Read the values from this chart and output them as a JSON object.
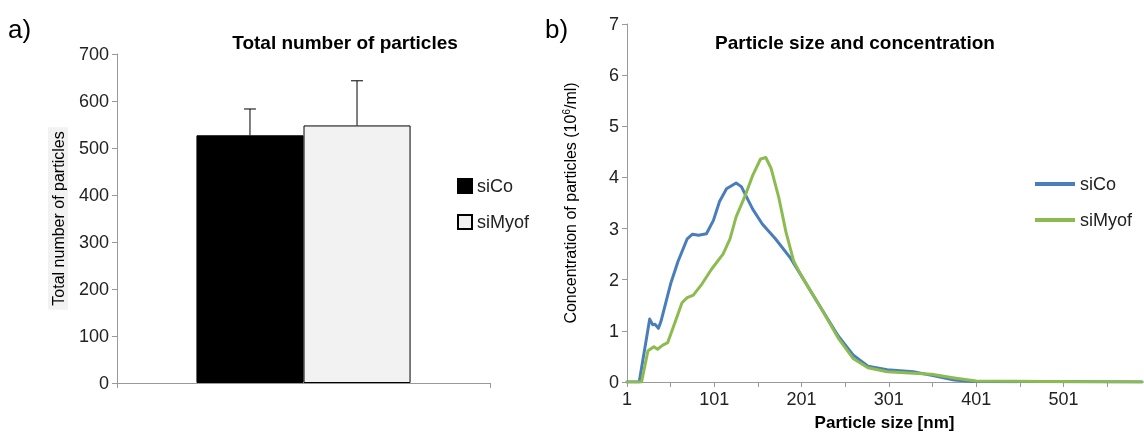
{
  "chart_data": [
    {
      "type": "bar",
      "title": "Total number of particles",
      "ylabel": "Total number of particles",
      "annotations": [
        "a)"
      ],
      "categories": [
        null
      ],
      "ylim": [
        0,
        700
      ],
      "yticks": [
        0,
        100,
        200,
        300,
        400,
        500,
        600,
        700
      ],
      "grid": false,
      "legend": "right",
      "series": [
        {
          "name": "siCo",
          "color": "#000000",
          "values": [
            527
          ],
          "errors": [
            [
              527,
              583
            ]
          ]
        },
        {
          "name": "siMyof",
          "color": "#f2f2f2",
          "values": [
            548
          ],
          "errors": [
            [
              548,
              643
            ]
          ]
        }
      ]
    },
    {
      "type": "line",
      "title": "Particle size and concentration",
      "xlabel": "Particle size [nm]",
      "ylabel": "Concentration of particles (10$^{6}$/ml)",
      "annotations": [
        "b)"
      ],
      "xlim": [
        1,
        591
      ],
      "xticks": [
        1,
        {
          "value": 51,
          "label": null
        },
        101,
        {
          "value": 151,
          "label": null
        },
        201,
        {
          "value": 251,
          "label": null
        },
        301,
        {
          "value": 351,
          "label": null
        },
        401,
        {
          "value": 451,
          "label": null
        },
        501,
        {
          "value": 551,
          "label": null
        }
      ],
      "ylim": [
        0,
        7
      ],
      "yticks": [
        0,
        1,
        2,
        3,
        4,
        5,
        6,
        7
      ],
      "grid": false,
      "legend": "right",
      "marker": "none",
      "line_style": "solid",
      "series": [
        {
          "name": "siCo",
          "color": "#4a7ebb",
          "x": [
            1,
            15,
            27,
            30.5,
            33,
            37,
            40,
            51,
            59.5,
            70,
            76,
            83,
            92,
            100,
            107,
            115,
            126,
            132,
            145,
            156,
            171,
            188,
            201,
            222,
            243,
            260,
            277,
            299,
            329,
            350,
            376,
            397,
            591
          ],
          "values": [
            0,
            0,
            1.23,
            1.12,
            1.13,
            1.05,
            1.19,
            1.92,
            2.36,
            2.8,
            2.89,
            2.87,
            2.9,
            3.16,
            3.53,
            3.78,
            3.89,
            3.82,
            3.38,
            3.09,
            2.8,
            2.43,
            2.07,
            1.48,
            0.9,
            0.53,
            0.31,
            0.24,
            0.2,
            0.13,
            0.04,
            0.01,
            0
          ]
        },
        {
          "name": "siMyof",
          "color": "#8cbc4f",
          "x": [
            1,
            17.7,
            25,
            31.8,
            36,
            42,
            47.6,
            55,
            64,
            70,
            77,
            87,
            98,
            111,
            119,
            126,
            137,
            145,
            154,
            160,
            166,
            175,
            183,
            192,
            201,
            222,
            243,
            260,
            277,
            299,
            329,
            350,
            376,
            401,
            478,
            495,
            591
          ],
          "values": [
            0,
            0,
            0.61,
            0.69,
            0.64,
            0.72,
            0.77,
            1.12,
            1.55,
            1.65,
            1.7,
            1.92,
            2.21,
            2.5,
            2.8,
            3.23,
            3.67,
            4.04,
            4.36,
            4.39,
            4.18,
            3.6,
            2.94,
            2.36,
            2.07,
            1.48,
            0.86,
            0.46,
            0.28,
            0.2,
            0.17,
            0.15,
            0.08,
            0.02,
            0.01,
            0.01,
            0
          ]
        }
      ]
    }
  ]
}
